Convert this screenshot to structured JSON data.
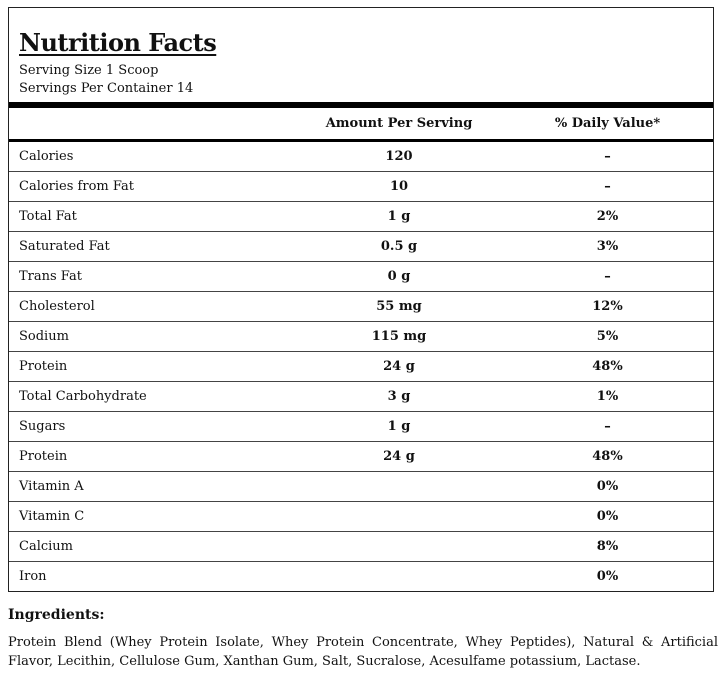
{
  "label": {
    "title": "Nutrition Facts",
    "serving_size": "Serving Size 1 Scoop",
    "servings_per_container": "Servings Per Container 14"
  },
  "table": {
    "columns": [
      "",
      "Amount Per Serving",
      "% Daily Value*"
    ],
    "rows": [
      {
        "name": "Calories",
        "amount": "120",
        "dv": "–"
      },
      {
        "name": "Calories from Fat",
        "amount": "10",
        "dv": "–"
      },
      {
        "name": "Total Fat",
        "amount": "1 g",
        "dv": "2%"
      },
      {
        "name": "Saturated Fat",
        "amount": "0.5 g",
        "dv": "3%"
      },
      {
        "name": "Trans Fat",
        "amount": "0 g",
        "dv": "–"
      },
      {
        "name": "Cholesterol",
        "amount": "55 mg",
        "dv": "12%"
      },
      {
        "name": "Sodium",
        "amount": "115 mg",
        "dv": "5%"
      },
      {
        "name": "Protein",
        "amount": "24 g",
        "dv": "48%"
      },
      {
        "name": "Total Carbohydrate",
        "amount": "3 g",
        "dv": "1%"
      },
      {
        "name": "Sugars",
        "amount": "1 g",
        "dv": "–"
      },
      {
        "name": "Protein",
        "amount": "24 g",
        "dv": "48%"
      },
      {
        "name": "Vitamin A",
        "amount": "",
        "dv": "0%"
      },
      {
        "name": "Vitamin C",
        "amount": "",
        "dv": "0%"
      },
      {
        "name": "Calcium",
        "amount": "",
        "dv": "8%"
      },
      {
        "name": "Iron",
        "amount": "",
        "dv": "0%"
      }
    ]
  },
  "ingredients": {
    "title": "Ingredients:",
    "text": "Protein Blend (Whey Protein Isolate, Whey Protein Concentrate, Whey Peptides), Natural & Artificial Flavor, Lecithin, Cellulose Gum, Xanthan Gum, Salt, Sucralose, Acesulfame potassium, Lactase."
  }
}
